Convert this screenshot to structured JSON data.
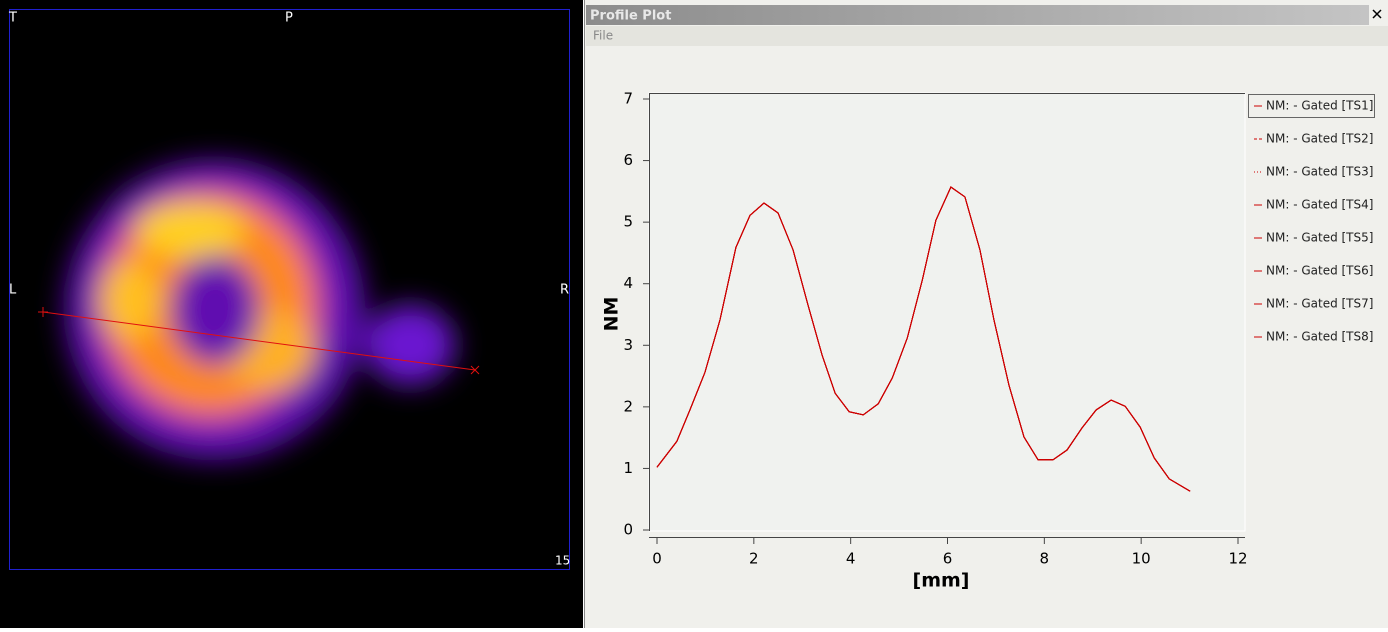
{
  "viewer": {
    "labels": {
      "top_left": "T",
      "top": "P",
      "left": "L",
      "right": "R",
      "slice": "15"
    }
  },
  "window": {
    "title": "Profile Plot",
    "menu": [
      "File"
    ]
  },
  "chart_data": {
    "type": "line",
    "xlabel": "[mm]",
    "ylabel": "NM",
    "x": [
      0,
      0.41,
      0.68,
      0.99,
      1.3,
      1.63,
      1.92,
      2.21,
      2.5,
      2.81,
      3.12,
      3.41,
      3.68,
      3.97,
      4.26,
      4.57,
      4.86,
      5.17,
      5.48,
      5.76,
      6.07,
      6.36,
      6.67,
      6.96,
      7.27,
      7.58,
      7.87,
      8.18,
      8.47,
      8.78,
      9.07,
      9.38,
      9.67,
      9.98,
      10.27,
      10.58,
      11.01
    ],
    "series": [
      {
        "name": "NM: - Gated [TS1]",
        "color": "#cc0000",
        "dash": "solid",
        "values": [
          1.02,
          1.44,
          1.95,
          2.56,
          3.41,
          4.59,
          5.11,
          5.31,
          5.15,
          4.55,
          3.65,
          2.84,
          2.22,
          1.92,
          1.87,
          2.05,
          2.47,
          3.12,
          4.06,
          5.03,
          5.57,
          5.41,
          4.55,
          3.41,
          2.35,
          1.51,
          1.14,
          1.14,
          1.3,
          1.66,
          1.95,
          2.11,
          2.01,
          1.67,
          1.17,
          0.83,
          0.63
        ]
      },
      {
        "name": "NM: - Gated [TS2]",
        "color": "#cc0000",
        "dash": "dashed",
        "values": [
          1.02,
          1.44,
          1.95,
          2.56,
          3.41,
          4.59,
          5.11,
          5.31,
          5.15,
          4.55,
          3.65,
          2.84,
          2.22,
          1.92,
          1.87,
          2.05,
          2.47,
          3.12,
          4.06,
          5.03,
          5.57,
          5.41,
          4.55,
          3.41,
          2.35,
          1.51,
          1.14,
          1.14,
          1.3,
          1.66,
          1.95,
          2.11,
          2.01,
          1.67,
          1.17,
          0.83,
          0.63
        ]
      },
      {
        "name": "NM: - Gated [TS3]",
        "color": "#cc0000",
        "dash": "dotted",
        "values": [
          1.02,
          1.44,
          1.95,
          2.56,
          3.41,
          4.59,
          5.11,
          5.31,
          5.15,
          4.55,
          3.65,
          2.84,
          2.22,
          1.92,
          1.87,
          2.05,
          2.47,
          3.12,
          4.06,
          5.03,
          5.57,
          5.41,
          4.55,
          3.41,
          2.35,
          1.51,
          1.14,
          1.14,
          1.3,
          1.66,
          1.95,
          2.11,
          2.01,
          1.67,
          1.17,
          0.83,
          0.63
        ]
      },
      {
        "name": "NM: - Gated [TS4]",
        "color": "#cc0000",
        "dash": "solid",
        "values": [
          1.02,
          1.44,
          1.95,
          2.56,
          3.41,
          4.59,
          5.11,
          5.31,
          5.15,
          4.55,
          3.65,
          2.84,
          2.22,
          1.92,
          1.87,
          2.05,
          2.47,
          3.12,
          4.06,
          5.03,
          5.57,
          5.41,
          4.55,
          3.41,
          2.35,
          1.51,
          1.14,
          1.14,
          1.3,
          1.66,
          1.95,
          2.11,
          2.01,
          1.67,
          1.17,
          0.83,
          0.63
        ]
      },
      {
        "name": "NM: - Gated [TS5]",
        "color": "#cc0000",
        "dash": "solid",
        "values": [
          1.02,
          1.44,
          1.95,
          2.56,
          3.41,
          4.59,
          5.11,
          5.31,
          5.15,
          4.55,
          3.65,
          2.84,
          2.22,
          1.92,
          1.87,
          2.05,
          2.47,
          3.12,
          4.06,
          5.03,
          5.57,
          5.41,
          4.55,
          3.41,
          2.35,
          1.51,
          1.14,
          1.14,
          1.3,
          1.66,
          1.95,
          2.11,
          2.01,
          1.67,
          1.17,
          0.83,
          0.63
        ]
      },
      {
        "name": "NM: - Gated [TS6]",
        "color": "#cc0000",
        "dash": "solid",
        "values": [
          1.02,
          1.44,
          1.95,
          2.56,
          3.41,
          4.59,
          5.11,
          5.31,
          5.15,
          4.55,
          3.65,
          2.84,
          2.22,
          1.92,
          1.87,
          2.05,
          2.47,
          3.12,
          4.06,
          5.03,
          5.57,
          5.41,
          4.55,
          3.41,
          2.35,
          1.51,
          1.14,
          1.14,
          1.3,
          1.66,
          1.95,
          2.11,
          2.01,
          1.67,
          1.17,
          0.83,
          0.63
        ]
      },
      {
        "name": "NM: - Gated [TS7]",
        "color": "#cc0000",
        "dash": "solid",
        "values": [
          1.02,
          1.44,
          1.95,
          2.56,
          3.41,
          4.59,
          5.11,
          5.31,
          5.15,
          4.55,
          3.65,
          2.84,
          2.22,
          1.92,
          1.87,
          2.05,
          2.47,
          3.12,
          4.06,
          5.03,
          5.57,
          5.41,
          4.55,
          3.41,
          2.35,
          1.51,
          1.14,
          1.14,
          1.3,
          1.66,
          1.95,
          2.11,
          2.01,
          1.67,
          1.17,
          0.83,
          0.63
        ]
      },
      {
        "name": "NM: - Gated [TS8]",
        "color": "#cc0000",
        "dash": "solid",
        "values": [
          1.02,
          1.44,
          1.95,
          2.56,
          3.41,
          4.59,
          5.11,
          5.31,
          5.15,
          4.55,
          3.65,
          2.84,
          2.22,
          1.92,
          1.87,
          2.05,
          2.47,
          3.12,
          4.06,
          5.03,
          5.57,
          5.41,
          4.55,
          3.41,
          2.35,
          1.51,
          1.14,
          1.14,
          1.3,
          1.66,
          1.95,
          2.11,
          2.01,
          1.67,
          1.17,
          0.83,
          0.63
        ]
      }
    ],
    "xlim": [
      0,
      12
    ],
    "xticks": [
      0,
      2,
      4,
      6,
      8,
      10,
      12
    ],
    "ylim": [
      0,
      7
    ],
    "yticks": [
      0,
      1,
      2,
      3,
      4,
      5,
      6,
      7
    ],
    "legend": "right"
  }
}
